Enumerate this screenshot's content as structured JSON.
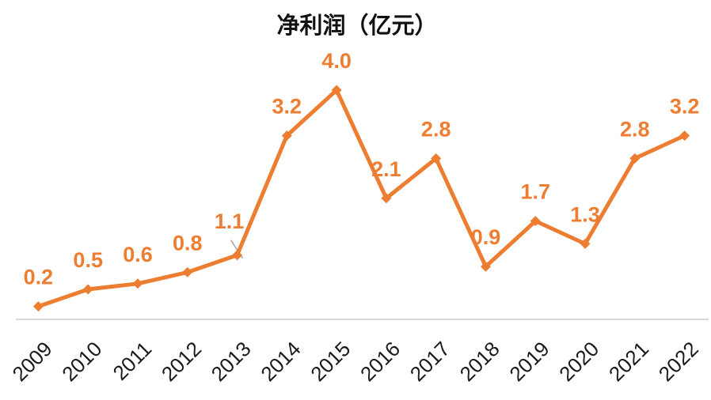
{
  "chart_data": {
    "type": "line",
    "title": "净利润（亿元）",
    "xlabel": "",
    "ylabel": "",
    "categories": [
      "2009",
      "2010",
      "2011",
      "2012",
      "2013",
      "2014",
      "2015",
      "2016",
      "2017",
      "2018",
      "2019",
      "2020",
      "2021",
      "2022"
    ],
    "series": [
      {
        "name": "净利润",
        "values": [
          0.2,
          0.5,
          0.6,
          0.8,
          1.1,
          3.2,
          4.0,
          2.1,
          2.8,
          0.9,
          1.7,
          1.3,
          2.8,
          3.2
        ]
      }
    ],
    "data_labels": [
      "0.2",
      "0.5",
      "0.6",
      "0.8",
      "1.1",
      "3.2",
      "4.0",
      "2.1",
      "2.8",
      "0.9",
      "1.7",
      "1.3",
      "2.8",
      "3.2"
    ],
    "data_label_position": "above",
    "leader_line_on_index": 4,
    "ylim": [
      0,
      4.5
    ],
    "grid": false,
    "legend_position": "none",
    "x_tick_rotation_deg": 45,
    "marker": "diamond",
    "colors": {
      "series_line": "#ED7D31",
      "marker_fill": "#ED7D31",
      "data_label_text": "#ED7D31",
      "axis_line": "#D9D9D9",
      "leader_line": "#A6A6A6",
      "title_text": "#111111",
      "tick_text": "#1A1A1A",
      "background": "#FFFFFF"
    }
  }
}
